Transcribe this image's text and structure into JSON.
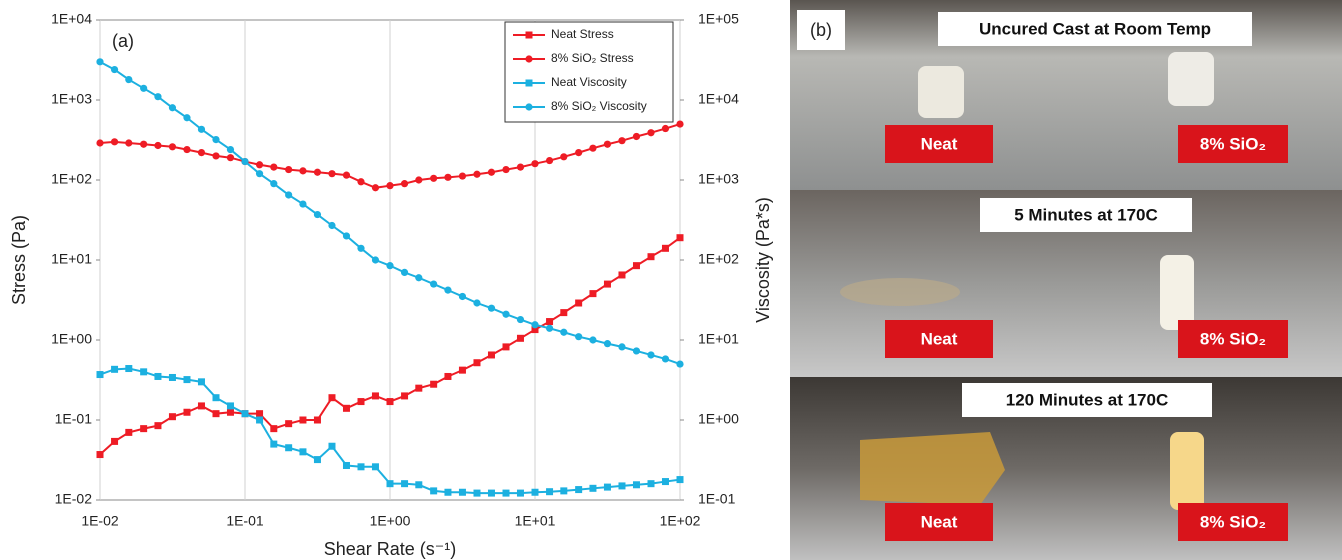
{
  "chart_data": {
    "type": "line",
    "panel_label": "(a)",
    "x_label": "Shear Rate (s⁻¹)",
    "y_label": "Stress (Pa)",
    "y2_label": "Viscosity (Pa*s)",
    "xscale": "log",
    "yscale": "log",
    "y2scale": "log",
    "xgrid": true,
    "legend": "upper right",
    "x": [
      0.01,
      0.0126,
      0.0158,
      0.02,
      0.0251,
      0.0316,
      0.0398,
      0.0501,
      0.0631,
      0.0794,
      0.1,
      0.126,
      0.158,
      0.2,
      0.251,
      0.316,
      0.398,
      0.501,
      0.631,
      0.794,
      1,
      1.26,
      1.58,
      2,
      2.51,
      3.16,
      3.98,
      5.01,
      6.31,
      7.94,
      10,
      12.6,
      15.8,
      20,
      25.1,
      31.6,
      39.8,
      50.1,
      63.1,
      79.4,
      100
    ],
    "xlim": [
      0.01,
      100
    ],
    "xticks": [
      {
        "value": 0.01,
        "label": "1E-02"
      },
      {
        "value": 0.1,
        "label": "1E-01"
      },
      {
        "value": 1,
        "label": "1E+00"
      },
      {
        "value": 10,
        "label": "1E+01"
      },
      {
        "value": 100,
        "label": "1E+02"
      }
    ],
    "ylim": [
      0.01,
      10000
    ],
    "yticks": [
      {
        "value": 0.01,
        "label": "1E-02"
      },
      {
        "value": 0.1,
        "label": "1E-01"
      },
      {
        "value": 1,
        "label": "1E+00"
      },
      {
        "value": 10,
        "label": "1E+01"
      },
      {
        "value": 100,
        "label": "1E+02"
      },
      {
        "value": 1000,
        "label": "1E+03"
      },
      {
        "value": 10000,
        "label": "1E+04"
      }
    ],
    "y2lim": [
      0.1,
      100000
    ],
    "y2ticks": [
      {
        "value": 0.1,
        "label": "1E-01"
      },
      {
        "value": 1,
        "label": "1E+00"
      },
      {
        "value": 10,
        "label": "1E+01"
      },
      {
        "value": 100,
        "label": "1E+02"
      },
      {
        "value": 1000,
        "label": "1E+03"
      },
      {
        "value": 10000,
        "label": "1E+04"
      },
      {
        "value": 100000,
        "label": "1E+05"
      }
    ],
    "series": [
      {
        "name": "Neat Stress",
        "color": "#ee1c25",
        "marker": "square",
        "values": [
          0.037,
          0.054,
          0.07,
          0.078,
          0.085,
          0.11,
          0.125,
          0.15,
          0.12,
          0.125,
          0.12,
          0.12,
          0.078,
          0.09,
          0.1,
          0.1,
          0.19,
          0.14,
          0.17,
          0.2,
          0.17,
          0.2,
          0.25,
          0.28,
          0.35,
          0.42,
          0.52,
          0.65,
          0.82,
          1.05,
          1.35,
          1.7,
          2.2,
          2.9,
          3.8,
          5.0,
          6.5,
          8.5,
          11,
          14,
          19
        ]
      },
      {
        "name": "8% SiO₂ Stress",
        "color": "#ee1c25",
        "marker": "circle",
        "values": [
          290,
          300,
          290,
          280,
          270,
          260,
          240,
          220,
          200,
          190,
          170,
          155,
          145,
          135,
          130,
          125,
          120,
          115,
          95,
          80,
          85,
          90,
          100,
          105,
          108,
          112,
          118,
          125,
          135,
          145,
          160,
          175,
          195,
          220,
          250,
          280,
          310,
          350,
          390,
          440,
          500
        ]
      },
      {
        "name": "Neat Viscosity",
        "color": "#1cb0e0",
        "marker": "square",
        "axis": "y2",
        "values": [
          3.7,
          4.3,
          4.4,
          4.0,
          3.5,
          3.4,
          3.2,
          3.0,
          1.9,
          1.5,
          1.2,
          1.0,
          0.5,
          0.45,
          0.4,
          0.32,
          0.47,
          0.27,
          0.26,
          0.26,
          0.16,
          0.16,
          0.155,
          0.13,
          0.125,
          0.125,
          0.122,
          0.122,
          0.122,
          0.122,
          0.125,
          0.127,
          0.13,
          0.135,
          0.14,
          0.145,
          0.15,
          0.155,
          0.16,
          0.17,
          0.18
        ]
      },
      {
        "name": "8% SiO₂ Viscosity",
        "color": "#1cb0e0",
        "marker": "circle",
        "axis": "y2",
        "values": [
          30000,
          24000,
          18000,
          14000,
          11000,
          8000,
          6000,
          4300,
          3200,
          2400,
          1700,
          1200,
          900,
          650,
          500,
          370,
          270,
          200,
          140,
          100,
          85,
          70,
          60,
          50,
          42,
          35,
          29,
          25,
          21,
          18,
          15.5,
          14,
          12.5,
          11,
          10,
          9,
          8.2,
          7.3,
          6.5,
          5.8,
          5.0
        ]
      }
    ]
  },
  "photo_panel": {
    "label": "(b)",
    "rows": [
      {
        "title": "Uncured Cast at Room Temp",
        "left_label": "Neat",
        "right_label": "8% SiO₂"
      },
      {
        "title": "5 Minutes at 170C",
        "left_label": "Neat",
        "right_label": "8% SiO₂"
      },
      {
        "title": "120 Minutes at 170C",
        "left_label": "Neat",
        "right_label": "8% SiO₂"
      }
    ]
  }
}
